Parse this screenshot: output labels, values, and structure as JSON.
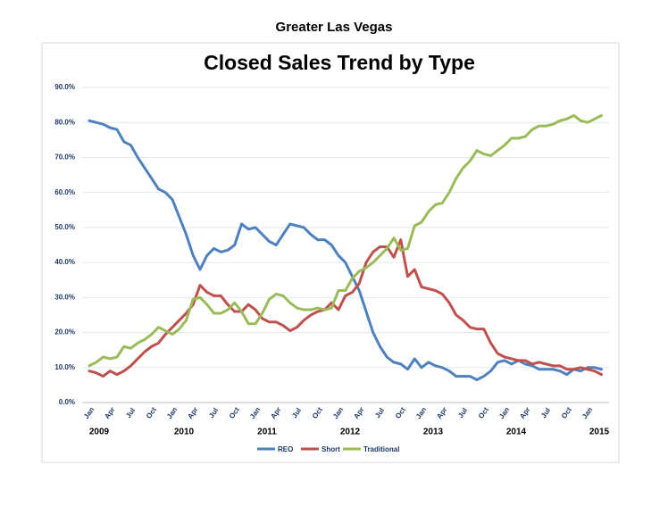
{
  "header": "Greater Las Vegas",
  "chart_data": {
    "type": "line",
    "title": "Closed Sales Trend by Type",
    "categories": [
      "Jan",
      null,
      null,
      "Apr",
      null,
      null,
      "Jul",
      null,
      null,
      "Oct",
      null,
      null,
      "Jan",
      null,
      null,
      "Apr",
      null,
      null,
      "Jul",
      null,
      null,
      "Oct",
      null,
      null,
      "Jan",
      null,
      null,
      "Apr",
      null,
      null,
      "Jul",
      null,
      null,
      "Oct",
      null,
      null,
      "Jan",
      null,
      null,
      "Apr",
      null,
      null,
      "Jul",
      null,
      null,
      "Oct",
      null,
      null,
      "Jan",
      null,
      null,
      "Apr",
      null,
      null,
      "Jul",
      null,
      null,
      "Oct",
      null,
      null,
      "Jan",
      null,
      null,
      "Apr",
      null,
      null,
      "Jul",
      null,
      null,
      "Oct",
      null,
      null,
      "Jan",
      null,
      null
    ],
    "year_labels": [
      "2009",
      "2010",
      "2011",
      "2012",
      "2013",
      "2014",
      "2015"
    ],
    "series": [
      {
        "name": "REO",
        "color": "#4f81bd",
        "values": [
          80.5,
          80,
          79.5,
          78.5,
          78,
          74.5,
          73.5,
          70,
          67,
          64,
          61,
          60,
          58,
          53,
          48,
          42,
          38,
          42,
          44,
          43,
          43.5,
          45,
          51,
          49.5,
          50,
          48,
          46,
          45,
          48,
          51,
          50.5,
          50,
          48,
          46.5,
          46.5,
          45,
          42,
          40,
          36,
          32,
          26,
          20,
          16,
          13,
          11.5,
          11,
          9.5,
          12.5,
          10,
          11.5,
          10.5,
          10,
          9,
          7.5,
          7.5,
          7.5,
          6.5,
          7.5,
          9,
          11.5,
          12,
          11,
          12,
          11,
          10.5,
          9.5,
          9.5,
          9.5,
          9,
          8,
          9.5,
          9,
          10,
          10,
          9.5
        ]
      },
      {
        "name": "Short",
        "color": "#c0504d",
        "values": [
          9,
          8.5,
          7.5,
          9,
          8,
          9,
          10.5,
          12.5,
          14.5,
          16,
          17,
          19.5,
          21.5,
          23.5,
          25.5,
          28,
          33.5,
          31.5,
          30.5,
          30.5,
          28,
          26,
          26,
          28,
          26.5,
          24,
          23,
          23,
          22,
          20.5,
          21.5,
          23.5,
          25,
          26,
          26.5,
          28.5,
          26.5,
          30.5,
          31.5,
          34,
          40,
          43,
          44.5,
          44.5,
          41.5,
          46.5,
          36,
          38,
          33,
          32.5,
          32,
          31,
          28.5,
          25,
          23.5,
          21.5,
          21,
          21,
          17,
          14,
          13,
          12.5,
          12,
          12,
          11,
          11.5,
          11,
          10.5,
          10.5,
          9.5,
          9.5,
          10,
          9.5,
          9,
          8
        ]
      },
      {
        "name": "Traditional",
        "color": "#9bbb59",
        "values": [
          10.5,
          11.5,
          13,
          12.5,
          13,
          16,
          15.5,
          17,
          18,
          19.5,
          21.5,
          20.5,
          19.5,
          21,
          23.5,
          29.5,
          30,
          28,
          25.5,
          25.5,
          26.5,
          28.5,
          26,
          22.5,
          22.5,
          25.5,
          29.5,
          31,
          30.5,
          28.5,
          27,
          26.5,
          26.5,
          27,
          26.5,
          27,
          32,
          32,
          35.5,
          37.5,
          38.5,
          40,
          42,
          44,
          47,
          43.5,
          44,
          50.5,
          51.5,
          54.5,
          56.5,
          57,
          60,
          64,
          67,
          69,
          72,
          71,
          70.5,
          72,
          73.5,
          75.5,
          75.5,
          76,
          78,
          79,
          79,
          79.5,
          80.5,
          81,
          82,
          80.5,
          80,
          81,
          82
        ]
      }
    ],
    "ylim": [
      0,
      90
    ],
    "yticks": [
      {
        "value": 0,
        "label": "0.0%"
      },
      {
        "value": 10,
        "label": "10.0%"
      },
      {
        "value": 20,
        "label": "20.0%"
      },
      {
        "value": 30,
        "label": "30.0%"
      },
      {
        "value": 40,
        "label": "40.0%"
      },
      {
        "value": 50,
        "label": "50.0%"
      },
      {
        "value": 60,
        "label": "60.0%"
      },
      {
        "value": 70,
        "label": "70.0%"
      },
      {
        "value": 80,
        "label": "80.0%"
      },
      {
        "value": 90,
        "label": "90.0%"
      }
    ],
    "grid": true,
    "legend": "bottom"
  }
}
